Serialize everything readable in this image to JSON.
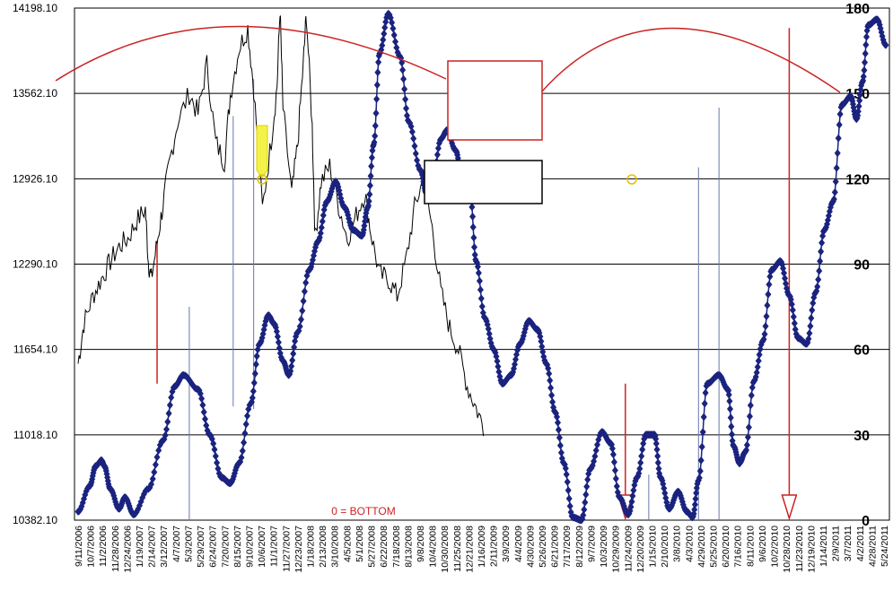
{
  "chart_data": {
    "type": "line",
    "left_axis": {
      "ticks": [
        "14198.10",
        "13562.10",
        "12926.10",
        "12290.10",
        "11654.10",
        "11018.10",
        "10382.10"
      ],
      "range": [
        10382.1,
        14198.1
      ]
    },
    "right_axis": {
      "ticks": [
        "180",
        "150",
        "120",
        "90",
        "60",
        "30",
        "0"
      ],
      "range": [
        0,
        180
      ]
    },
    "x_ticks": [
      "9/11/2006",
      "10/7/2006",
      "11/2/2006",
      "11/28/2006",
      "12/24/2006",
      "1/19/2007",
      "2/14/2007",
      "3/12/2007",
      "4/7/2007",
      "5/3/2007",
      "5/29/2007",
      "6/24/2007",
      "7/20/2007",
      "8/15/2007",
      "9/10/2007",
      "10/6/2007",
      "11/1/2007",
      "11/27/2007",
      "12/23/2007",
      "1/18/2008",
      "2/13/2008",
      "3/10/2008",
      "4/5/2008",
      "5/1/2008",
      "5/27/2008",
      "6/22/2008",
      "7/18/2008",
      "8/13/2008",
      "9/8/2008",
      "10/4/2008",
      "10/30/2008",
      "11/25/2008",
      "12/21/2008",
      "1/16/2009",
      "2/11/2009",
      "3/9/2009",
      "4/4/2009",
      "4/30/2009",
      "5/26/2009",
      "6/21/2009",
      "7/17/2009",
      "8/12/2009",
      "9/7/2009",
      "10/3/2009",
      "10/29/2009",
      "11/24/2009",
      "12/20/2009",
      "1/15/2010",
      "2/10/2010",
      "3/8/2010",
      "4/3/2010",
      "4/29/2010",
      "5/25/2010",
      "6/20/2010",
      "7/16/2010",
      "8/11/2010",
      "9/6/2010",
      "10/2/2010",
      "10/28/2010",
      "11/23/2010",
      "12/19/2010",
      "1/14/2011",
      "2/9/2011",
      "3/7/2011",
      "4/2/2011",
      "4/28/2011",
      "5/24/2011"
    ],
    "grid": true,
    "legend": "none",
    "annotations": {
      "bottom_label": "0 = BOTTOM"
    },
    "series": [
      {
        "axis": "right",
        "color": "#1a237e",
        "x": [
          0,
          4,
          6,
          8,
          9,
          11,
          14,
          16,
          19,
          24,
          29,
          33,
          36,
          41,
          45,
          49,
          52,
          55,
          59,
          62,
          65,
          67,
          70,
          72,
          75,
          79,
          82,
          85,
          88,
          91,
          94,
          97,
          99,
          101,
          103,
          106,
          110,
          113,
          117,
          119,
          121,
          124,
          126,
          129,
          131,
          134,
          136,
          139,
          142,
          145,
          148,
          151,
          154,
          157,
          160,
          163,
          166,
          169,
          172,
          175,
          179,
          182,
          185,
          188,
          191,
          194,
          197,
          199,
          202,
          205,
          208,
          210,
          212,
          215,
          219,
          222,
          224,
          226,
          228,
          231,
          234,
          237,
          240,
          243,
          246,
          249,
          252,
          255,
          258,
          261,
          264,
          266,
          268,
          270,
          273,
          276
        ],
        "values": [
          3,
          12,
          19,
          21,
          19,
          11,
          4,
          8,
          2,
          11,
          28,
          47,
          51,
          46,
          30,
          15,
          13,
          20,
          41,
          62,
          72,
          69,
          56,
          51,
          66,
          88,
          98,
          112,
          119,
          110,
          102,
          100,
          110,
          132,
          164,
          178,
          163,
          140,
          123,
          115,
          118,
          134,
          137,
          130,
          122,
          115,
          91,
          71,
          60,
          48,
          51,
          62,
          70,
          67,
          55,
          38,
          20,
          1,
          0,
          18,
          31,
          27,
          8,
          2,
          15,
          30,
          30,
          15,
          4,
          10,
          3,
          1,
          14,
          48,
          51,
          46,
          26,
          20,
          24,
          49,
          63,
          88,
          91,
          79,
          64,
          62,
          80,
          102,
          112,
          146,
          149,
          141,
          154,
          174,
          176,
          167
        ],
        "markers": true
      },
      {
        "axis": "left",
        "color": "#000000",
        "x": [
          0,
          2,
          5,
          8,
          11,
          14,
          17,
          20,
          23,
          24,
          25,
          27,
          29,
          31,
          34,
          38,
          41,
          44,
          47,
          50,
          52,
          55,
          58,
          60,
          63,
          66,
          68,
          69,
          70,
          73,
          75,
          77,
          78,
          80,
          81,
          83,
          86,
          89,
          92,
          95,
          98,
          100,
          103,
          106,
          109,
          112,
          115,
          118,
          121,
          124,
          127,
          130,
          133,
          136,
          139
        ],
        "values": [
          11550,
          11850,
          12050,
          12180,
          12310,
          12420,
          12480,
          12610,
          12700,
          12310,
          12180,
          12450,
          12730,
          13020,
          13350,
          13560,
          13410,
          13780,
          13200,
          13050,
          13550,
          13900,
          14050,
          13600,
          12700,
          13210,
          13620,
          14198,
          13450,
          12810,
          13180,
          13800,
          14160,
          13310,
          12480,
          12900,
          13020,
          12730,
          12480,
          12650,
          12820,
          12530,
          12210,
          12180,
          12050,
          12310,
          12710,
          12930,
          12560,
          12080,
          11810,
          11650,
          11380,
          11220,
          11050
        ],
        "markers": false
      }
    ],
    "reference_lines": [
      {
        "color": "#cc2222",
        "arrow": false,
        "x": 27,
        "from": 48,
        "to": 98
      },
      {
        "color": "#cc2222",
        "arrow": true,
        "x": 187,
        "from": 48,
        "to": 0
      },
      {
        "color": "#cc2222",
        "arrow": true,
        "x": 243,
        "from": 173,
        "to": 0
      },
      {
        "color": "#6677aa",
        "arrow": false,
        "x": 38,
        "from": 0,
        "to": 75
      },
      {
        "color": "#6677aa",
        "arrow": false,
        "x": 53,
        "from": 40,
        "to": 142
      },
      {
        "color": "#6677aa",
        "arrow": false,
        "x": 60,
        "from": 39,
        "to": 155
      },
      {
        "color": "#6677aa",
        "arrow": false,
        "x": 195,
        "from": 0,
        "to": 16
      },
      {
        "color": "#6677aa",
        "arrow": false,
        "x": 212,
        "from": 0,
        "to": 124
      },
      {
        "color": "#6677aa",
        "arrow": false,
        "x": 219,
        "from": 0,
        "to": 145
      }
    ]
  }
}
